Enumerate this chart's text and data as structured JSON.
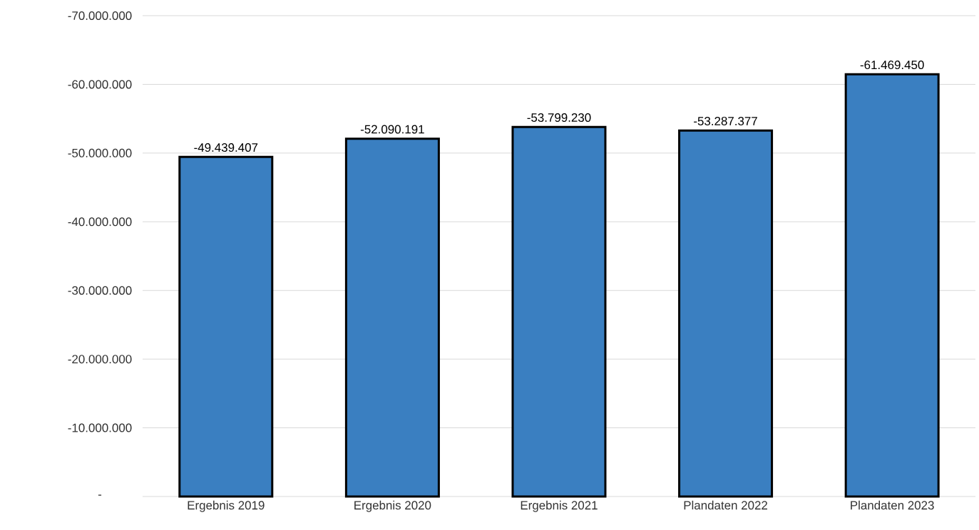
{
  "chart_data": {
    "type": "bar",
    "categories": [
      "Ergebnis 2019",
      "Ergebnis 2020",
      "Ergebnis 2021",
      "Plandaten 2022",
      "Plandaten 2023"
    ],
    "values": [
      -49439407,
      -52090191,
      -53799230,
      -53287377,
      -61469450
    ],
    "value_labels": [
      "-49.439.407",
      "-52.090.191",
      "-53.799.230",
      "-53.287.377",
      "-61.469.450"
    ],
    "color": "#3a7fc1",
    "ylim": [
      0,
      -70000000
    ],
    "yticks": [
      {
        "value": 0,
        "label": "-"
      },
      {
        "value": -10000000,
        "label": "-10.000.000"
      },
      {
        "value": -20000000,
        "label": "-20.000.000"
      },
      {
        "value": -30000000,
        "label": "-30.000.000"
      },
      {
        "value": -40000000,
        "label": "-40.000.000"
      },
      {
        "value": -50000000,
        "label": "-50.000.000"
      },
      {
        "value": -60000000,
        "label": "-60.000.000"
      },
      {
        "value": -70000000,
        "label": "-70.000.000"
      }
    ],
    "grid": "y"
  }
}
